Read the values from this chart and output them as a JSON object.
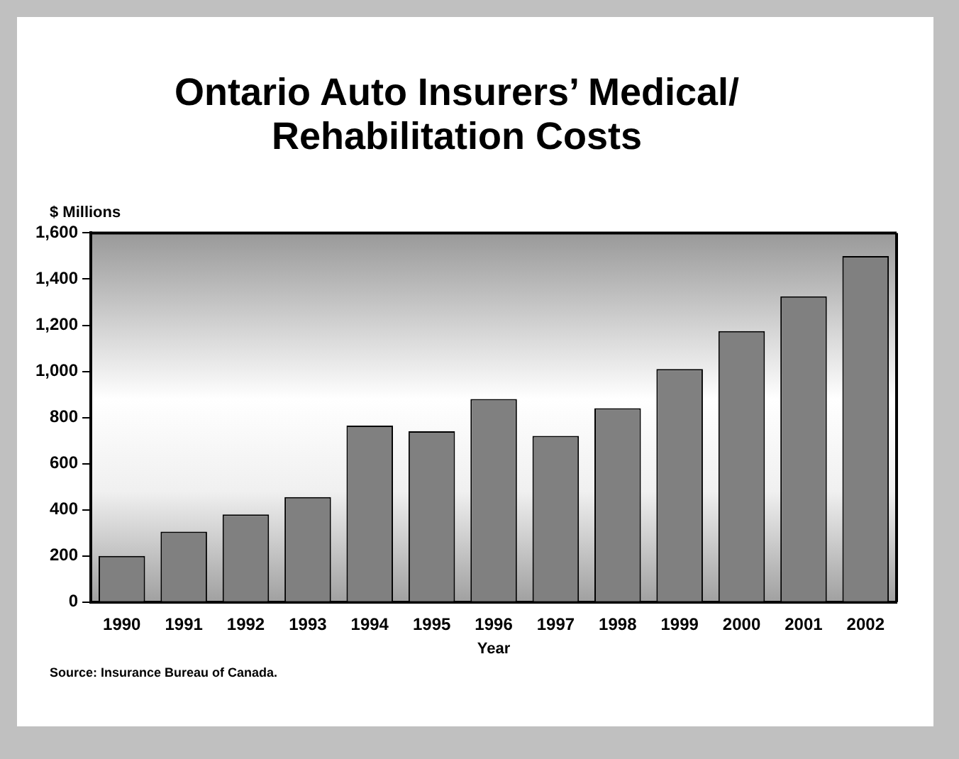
{
  "chart_data": {
    "type": "bar",
    "title": "Ontario Auto Insurers’ Medical/ Rehabilitation Costs",
    "ylabel": "$ Millions",
    "xlabel": "Year",
    "categories": [
      "1990",
      "1991",
      "1992",
      "1993",
      "1994",
      "1995",
      "1996",
      "1997",
      "1998",
      "1999",
      "2000",
      "2001",
      "2002"
    ],
    "values": [
      200,
      305,
      380,
      455,
      765,
      740,
      880,
      720,
      840,
      1010,
      1175,
      1325,
      1500
    ],
    "color": "#808080",
    "ylim": [
      0,
      1600
    ],
    "yticks": [
      {
        "value": 0,
        "label": "0"
      },
      {
        "value": 200,
        "label": "200"
      },
      {
        "value": 400,
        "label": "400"
      },
      {
        "value": 600,
        "label": "600"
      },
      {
        "value": 800,
        "label": "800"
      },
      {
        "value": 1000,
        "label": "1,000"
      },
      {
        "value": 1200,
        "label": "1,200"
      },
      {
        "value": 1400,
        "label": "1,400"
      },
      {
        "value": 1600,
        "label": "1,600"
      }
    ],
    "grid": false,
    "legend": false,
    "annotations": [
      "Source: Insurance Bureau of Canada."
    ]
  }
}
